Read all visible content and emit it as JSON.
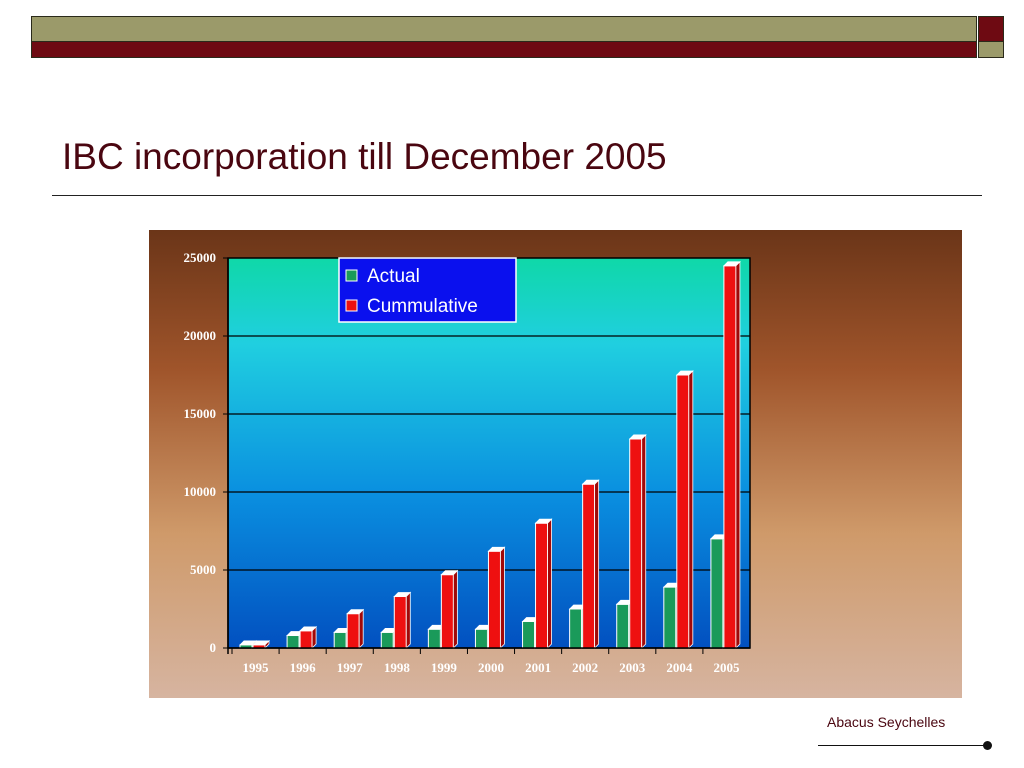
{
  "slide": {
    "title": "IBC incorporation till December 2005",
    "footer": "Abacus Seychelles"
  },
  "colors": {
    "band_olive": "#9b9a6a",
    "band_maroon": "#6e0a12",
    "title": "#4a0610",
    "actual": "#1a9a5a",
    "cumulative": "#ee1010"
  },
  "chart_data": {
    "type": "bar",
    "categories": [
      "1995",
      "1996",
      "1997",
      "1998",
      "1999",
      "2000",
      "2001",
      "2002",
      "2003",
      "2004",
      "2005"
    ],
    "series": [
      {
        "name": "Actual",
        "values": [
          200,
          800,
          1000,
          1000,
          1200,
          1200,
          1700,
          2500,
          2800,
          3900,
          7000
        ]
      },
      {
        "name": "Cummulative",
        "values": [
          200,
          1100,
          2200,
          3300,
          4700,
          6200,
          8000,
          10500,
          13400,
          17500,
          24500
        ]
      }
    ],
    "yticks": [
      "0",
      "5000",
      "10000",
      "15000",
      "20000",
      "25000"
    ],
    "ylim": [
      0,
      25000
    ],
    "grid": true,
    "legend": "top-center"
  }
}
